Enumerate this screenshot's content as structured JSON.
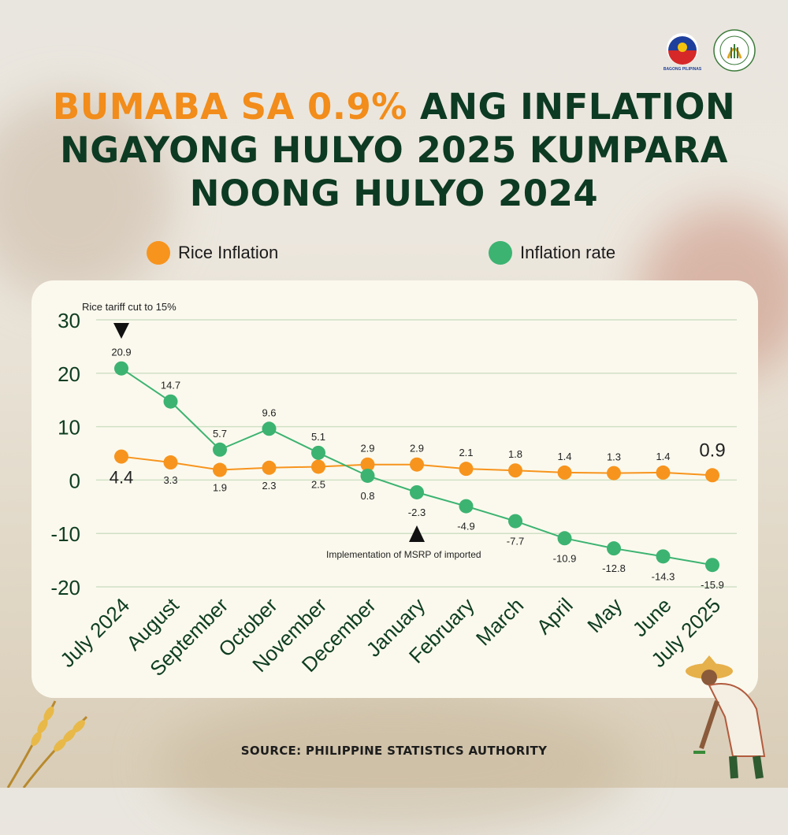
{
  "title": {
    "highlight": "BUMABA SA 0.9%",
    "rest_line1": " ANG INFLATION",
    "line2": "NGAYONG HULYO 2025 KUMPARA",
    "line3": "NOONG HULYO 2024"
  },
  "logos": [
    {
      "name": "bagong-pilipinas-logo",
      "text": "BAGONG PILIPINAS"
    },
    {
      "name": "department-of-agriculture-seal",
      "text": "DEPARTMENT OF AGRICULTURE"
    }
  ],
  "legend": {
    "rice_label": "Rice Inflation",
    "inflation_label": "Inflation rate"
  },
  "source": "SOURCE: PHILIPPINE STATISTICS AUTHORITY",
  "colors": {
    "rice": "#f7941d",
    "inflation": "#3cb371",
    "title_dark": "#0d3a22",
    "title_highlight": "#f28c1a",
    "axis_text": "#0e3d22",
    "card": "#fbf9ed"
  },
  "chart_data": {
    "type": "line",
    "categories": [
      "July 2024",
      "August",
      "September",
      "October",
      "November",
      "December",
      "January",
      "February",
      "March",
      "April",
      "May",
      "June",
      "July 2025"
    ],
    "ylim": [
      -20,
      30
    ],
    "yticks": [
      -20,
      -10,
      0,
      10,
      20,
      30
    ],
    "grid": true,
    "legend_position": "top",
    "series": [
      {
        "name": "Rice Inflation",
        "values": [
          4.4,
          3.3,
          1.9,
          2.3,
          2.5,
          2.9,
          2.9,
          2.1,
          1.8,
          1.4,
          1.3,
          1.4,
          0.9
        ]
      },
      {
        "name": "Inflation rate",
        "values": [
          20.9,
          14.7,
          5.7,
          9.6,
          5.1,
          0.8,
          -2.3,
          -4.9,
          -7.7,
          -10.9,
          -12.8,
          -14.3,
          -15.9
        ]
      }
    ],
    "rice_label_text": [
      "4.4",
      "3.3",
      "1.9",
      "2.3",
      "2.5",
      "2.9",
      "2.9",
      "2.1",
      "1.8",
      "1.4",
      "1.3",
      "1.4",
      "0.9"
    ],
    "inflation_label_text": [
      "20.9",
      "14.7",
      "5.7",
      "9.6",
      "5.1",
      "0.8",
      "-2.3",
      "-4.9",
      "-7.7",
      "-10.9",
      "-12.8",
      "-14.3",
      "-15.9"
    ],
    "annotations": [
      {
        "text": "Rice tariff cut to 15%",
        "category": "July 2024",
        "arrow": "down"
      },
      {
        "text": "Implementation of MSRP of imported",
        "category": "January",
        "arrow": "up"
      }
    ]
  }
}
